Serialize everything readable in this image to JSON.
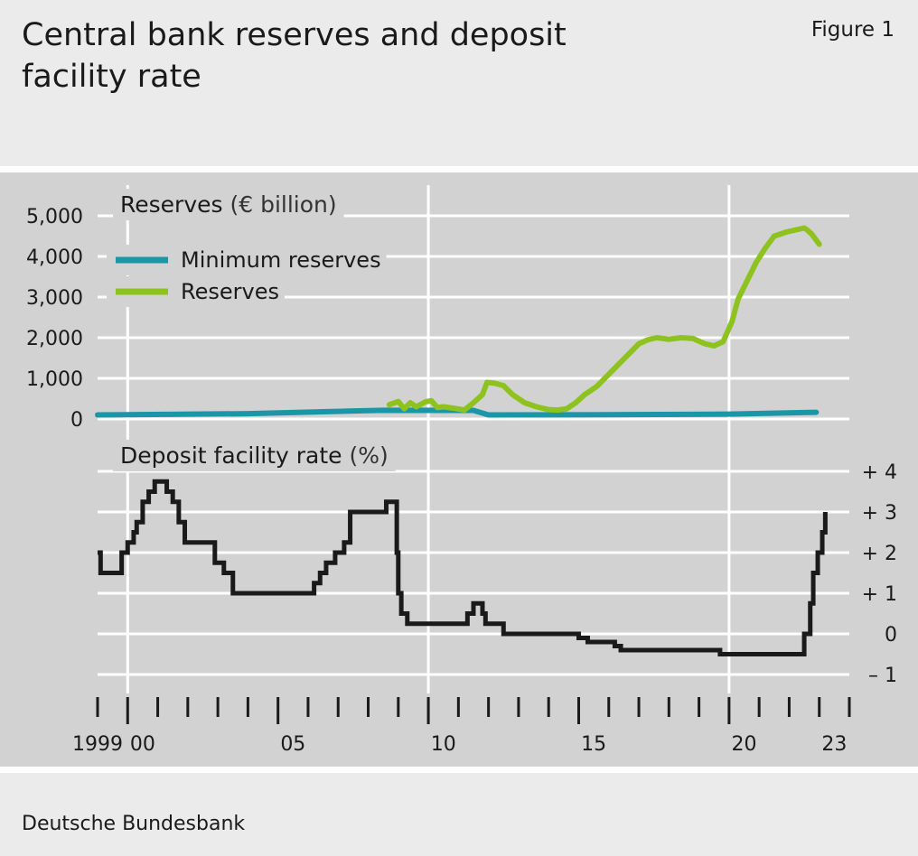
{
  "header": {
    "title": "Central bank reserves and deposit facility rate",
    "figure_label": "Figure 1"
  },
  "footer": {
    "source": "Deutsche Bundesbank"
  },
  "colors": {
    "minimum_reserves": "#1b96a6",
    "reserves": "#8ec31f",
    "deposit_rate": "#1a1a1a",
    "plot_background": "#d2d2d2",
    "page_background": "#ebebeb",
    "grid": "#ffffff"
  },
  "chart_data": [
    {
      "type": "line",
      "panel_title": "Reserves",
      "panel_unit": "(€ billion)",
      "ylim": [
        0,
        5000
      ],
      "yticks": [
        0,
        1000,
        2000,
        3000,
        4000,
        5000
      ],
      "ytick_labels": [
        "0",
        "1,000",
        "2,000",
        "3,000",
        "4,000",
        "5,000"
      ],
      "ytick_side": "left",
      "grid": true,
      "legend_position": "top-left",
      "series": [
        {
          "name": "Minimum reserves",
          "color_key": "minimum_reserves",
          "x": [
            1999.0,
            2004.0,
            2008.5,
            2011.5,
            2012.0,
            2016.0,
            2020.0,
            2022.9
          ],
          "y": [
            100,
            130,
            215,
            210,
            100,
            105,
            120,
            165
          ]
        },
        {
          "name": "Reserves",
          "color_key": "reserves",
          "x": [
            2008.7,
            2009.0,
            2009.2,
            2009.4,
            2009.6,
            2009.9,
            2010.1,
            2010.3,
            2010.5,
            2010.8,
            2011.2,
            2011.5,
            2011.8,
            2011.95,
            2012.2,
            2012.5,
            2012.8,
            2013.2,
            2013.6,
            2014.0,
            2014.3,
            2014.6,
            2014.9,
            2015.2,
            2015.6,
            2016.0,
            2016.4,
            2016.8,
            2017.0,
            2017.3,
            2017.6,
            2018.0,
            2018.4,
            2018.8,
            2019.2,
            2019.5,
            2019.8,
            2020.1,
            2020.3,
            2020.6,
            2020.9,
            2021.2,
            2021.5,
            2021.9,
            2022.2,
            2022.5,
            2022.6,
            2022.75,
            2023.0
          ],
          "y": [
            350,
            430,
            250,
            400,
            300,
            420,
            450,
            280,
            300,
            270,
            220,
            400,
            600,
            900,
            880,
            820,
            600,
            400,
            300,
            230,
            220,
            250,
            400,
            600,
            800,
            1100,
            1400,
            1700,
            1850,
            1950,
            2000,
            1960,
            2000,
            1980,
            1850,
            1800,
            1900,
            2400,
            2950,
            3400,
            3850,
            4200,
            4500,
            4600,
            4650,
            4700,
            4650,
            4550,
            4300
          ]
        }
      ]
    },
    {
      "type": "line",
      "panel_title": "Deposit facility rate",
      "panel_unit": "(%)",
      "ylim": [
        -1,
        4
      ],
      "yticks": [
        -1,
        0,
        1,
        2,
        3,
        4
      ],
      "ytick_labels": [
        "– 1",
        "0",
        "+ 1",
        "+ 2",
        "+ 3",
        "+ 4"
      ],
      "ytick_side": "right",
      "grid": true,
      "series": [
        {
          "name": "",
          "color_key": "deposit_rate",
          "step": true,
          "x": [
            1999.0,
            1999.1,
            1999.3,
            1999.8,
            2000.0,
            2000.2,
            2000.3,
            2000.5,
            2000.7,
            2000.9,
            2001.3,
            2001.5,
            2001.7,
            2001.9,
            2002.0,
            2002.9,
            2003.2,
            2003.5,
            2005.9,
            2006.2,
            2006.4,
            2006.6,
            2006.9,
            2007.2,
            2007.4,
            2008.6,
            2008.8,
            2008.95,
            2009.0,
            2009.1,
            2009.3,
            2011.3,
            2011.5,
            2011.8,
            2011.9,
            2012.5,
            2015.0,
            2015.3,
            2016.2,
            2016.4,
            2019.7,
            2022.5,
            2022.7,
            2022.8,
            2022.95,
            2023.1,
            2023.2
          ],
          "y": [
            2.0,
            1.5,
            1.5,
            2.0,
            2.25,
            2.5,
            2.75,
            3.25,
            3.5,
            3.75,
            3.5,
            3.25,
            2.75,
            2.25,
            2.25,
            1.75,
            1.5,
            1.0,
            1.0,
            1.25,
            1.5,
            1.75,
            2.0,
            2.25,
            3.0,
            3.25,
            3.25,
            2.0,
            1.0,
            0.5,
            0.25,
            0.5,
            0.75,
            0.5,
            0.25,
            0.0,
            -0.1,
            -0.2,
            -0.3,
            -0.4,
            -0.5,
            0.0,
            0.75,
            1.5,
            2.0,
            2.5,
            3.0
          ]
        }
      ]
    }
  ],
  "x_axis": {
    "xlim": [
      1999,
      2024
    ],
    "major_ticks": [
      2000,
      2005,
      2010,
      2015,
      2020
    ],
    "tick_labels": [
      {
        "x": 1999.0,
        "label": "1999"
      },
      {
        "x": 2000.5,
        "label": "00"
      },
      {
        "x": 2005.5,
        "label": "05"
      },
      {
        "x": 2010.5,
        "label": "10"
      },
      {
        "x": 2015.5,
        "label": "15"
      },
      {
        "x": 2020.5,
        "label": "20"
      },
      {
        "x": 2023.5,
        "label": "23"
      }
    ]
  }
}
